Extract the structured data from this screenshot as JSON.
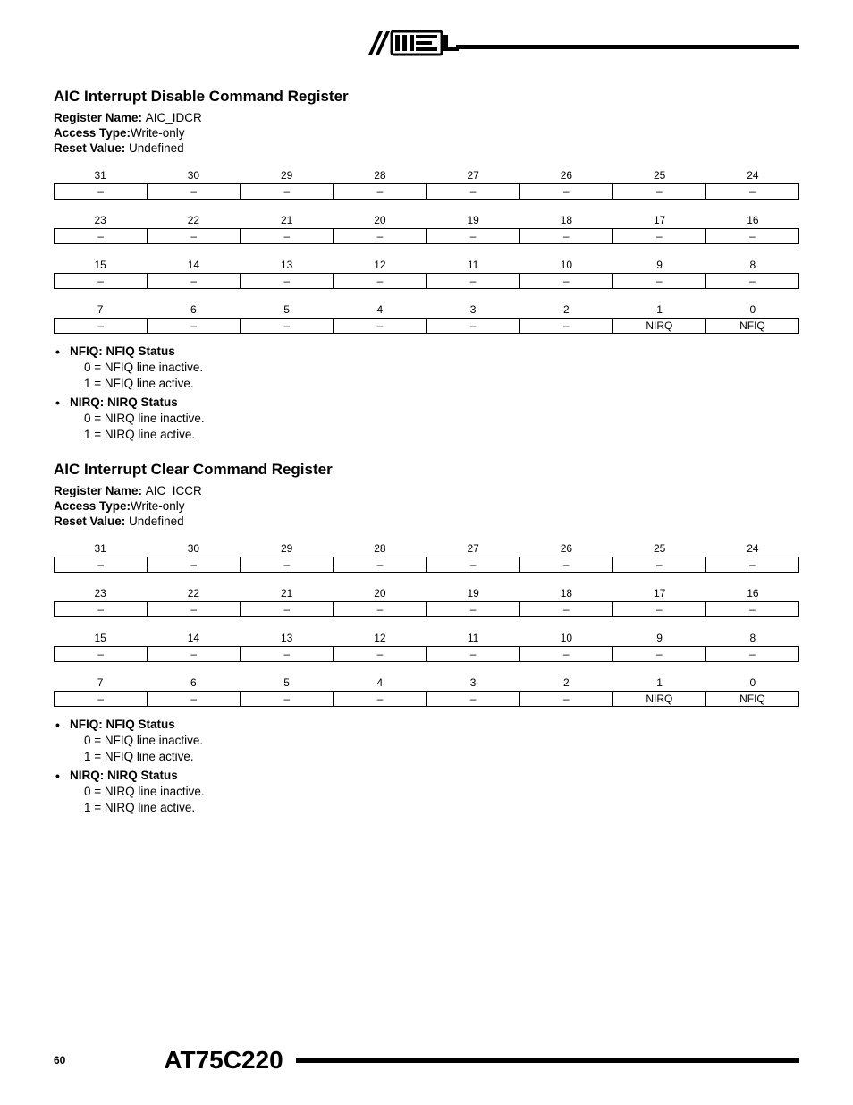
{
  "header": {
    "logo_text": "ATMEL"
  },
  "registers": [
    {
      "title": "AIC Interrupt Disable Command Register",
      "meta": [
        {
          "label": "Register Name: ",
          "value": "AIC_IDCR"
        },
        {
          "label": "Access Type:",
          "value": "Write-only"
        },
        {
          "label": "Reset Value: ",
          "value": "Undefined"
        }
      ],
      "rows": [
        {
          "bits": [
            "31",
            "30",
            "29",
            "28",
            "27",
            "26",
            "25",
            "24"
          ],
          "vals": [
            "–",
            "–",
            "–",
            "–",
            "–",
            "–",
            "–",
            "–"
          ]
        },
        {
          "bits": [
            "23",
            "22",
            "21",
            "20",
            "19",
            "18",
            "17",
            "16"
          ],
          "vals": [
            "–",
            "–",
            "–",
            "–",
            "–",
            "–",
            "–",
            "–"
          ]
        },
        {
          "bits": [
            "15",
            "14",
            "13",
            "12",
            "11",
            "10",
            "9",
            "8"
          ],
          "vals": [
            "–",
            "–",
            "–",
            "–",
            "–",
            "–",
            "–",
            "–"
          ]
        },
        {
          "bits": [
            "7",
            "6",
            "5",
            "4",
            "3",
            "2",
            "1",
            "0"
          ],
          "vals": [
            "–",
            "–",
            "–",
            "–",
            "–",
            "–",
            "NIRQ",
            "NFIQ"
          ]
        }
      ],
      "bullets": [
        {
          "head": "NFIQ: NFIQ Status",
          "subs": [
            "0 = NFIQ line inactive.",
            "1 = NFIQ line active."
          ]
        },
        {
          "head": "NIRQ: NIRQ Status",
          "subs": [
            "0 = NIRQ line inactive.",
            "1 = NIRQ line active."
          ]
        }
      ]
    },
    {
      "title": "AIC Interrupt Clear Command Register",
      "meta": [
        {
          "label": "Register Name: ",
          "value": "AIC_ICCR"
        },
        {
          "label": "Access Type:",
          "value": "Write-only"
        },
        {
          "label": "Reset Value: ",
          "value": "Undefined"
        }
      ],
      "rows": [
        {
          "bits": [
            "31",
            "30",
            "29",
            "28",
            "27",
            "26",
            "25",
            "24"
          ],
          "vals": [
            "–",
            "–",
            "–",
            "–",
            "–",
            "–",
            "–",
            "–"
          ]
        },
        {
          "bits": [
            "23",
            "22",
            "21",
            "20",
            "19",
            "18",
            "17",
            "16"
          ],
          "vals": [
            "–",
            "–",
            "–",
            "–",
            "–",
            "–",
            "–",
            "–"
          ]
        },
        {
          "bits": [
            "15",
            "14",
            "13",
            "12",
            "11",
            "10",
            "9",
            "8"
          ],
          "vals": [
            "–",
            "–",
            "–",
            "–",
            "–",
            "–",
            "–",
            "–"
          ]
        },
        {
          "bits": [
            "7",
            "6",
            "5",
            "4",
            "3",
            "2",
            "1",
            "0"
          ],
          "vals": [
            "–",
            "–",
            "–",
            "–",
            "–",
            "–",
            "NIRQ",
            "NFIQ"
          ]
        }
      ],
      "bullets": [
        {
          "head": "NFIQ: NFIQ Status",
          "subs": [
            "0 = NFIQ line inactive.",
            "1 = NFIQ line active."
          ]
        },
        {
          "head": "NIRQ: NIRQ Status",
          "subs": [
            "0 = NIRQ line inactive.",
            "1 = NIRQ line active."
          ]
        }
      ]
    }
  ],
  "footer": {
    "page_num": "60",
    "doc_title": "AT75C220"
  },
  "style": {
    "text_color": "#000000",
    "bg_color": "#ffffff",
    "line_color": "#000000",
    "title_fontsize": 17,
    "body_fontsize": 13.5,
    "bit_fontsize": 12,
    "doc_title_fontsize": 28
  }
}
